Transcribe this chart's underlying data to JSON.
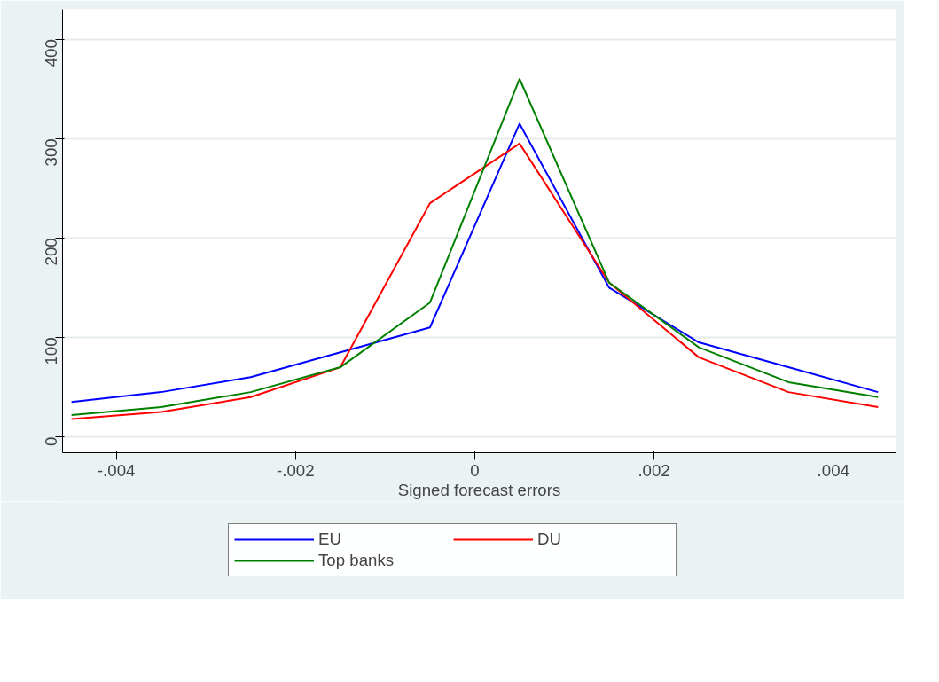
{
  "chart_data": {
    "type": "line",
    "xlabel": "Signed forecast errors",
    "x": [
      -0.0045,
      -0.0035,
      -0.0025,
      -0.0015,
      -0.0005,
      0.0005,
      0.0015,
      0.0025,
      0.0035,
      0.0045
    ],
    "series": [
      {
        "name": "EU",
        "color": "#0000ff",
        "values": [
          35,
          45,
          60,
          85,
          110,
          315,
          150,
          95,
          70,
          45
        ]
      },
      {
        "name": "DU",
        "color": "#ff0000",
        "values": [
          18,
          25,
          40,
          70,
          235,
          295,
          155,
          80,
          45,
          30
        ]
      },
      {
        "name": "Top banks",
        "color": "#008000",
        "values": [
          22,
          30,
          45,
          70,
          135,
          360,
          155,
          90,
          55,
          40
        ]
      }
    ],
    "xlim": [
      -0.0046,
      0.0047
    ],
    "ylim": [
      -16,
      430
    ],
    "xticks": [
      {
        "value": -0.004,
        "label": "-.004"
      },
      {
        "value": -0.002,
        "label": "-.002"
      },
      0,
      {
        "value": 0.002,
        "label": ".002"
      },
      {
        "value": 0.004,
        "label": ".004"
      }
    ],
    "yticks": [
      0,
      100,
      200,
      300,
      400
    ],
    "grid": "y",
    "legend": "bottom",
    "line_style": "solid",
    "marker": "none"
  }
}
